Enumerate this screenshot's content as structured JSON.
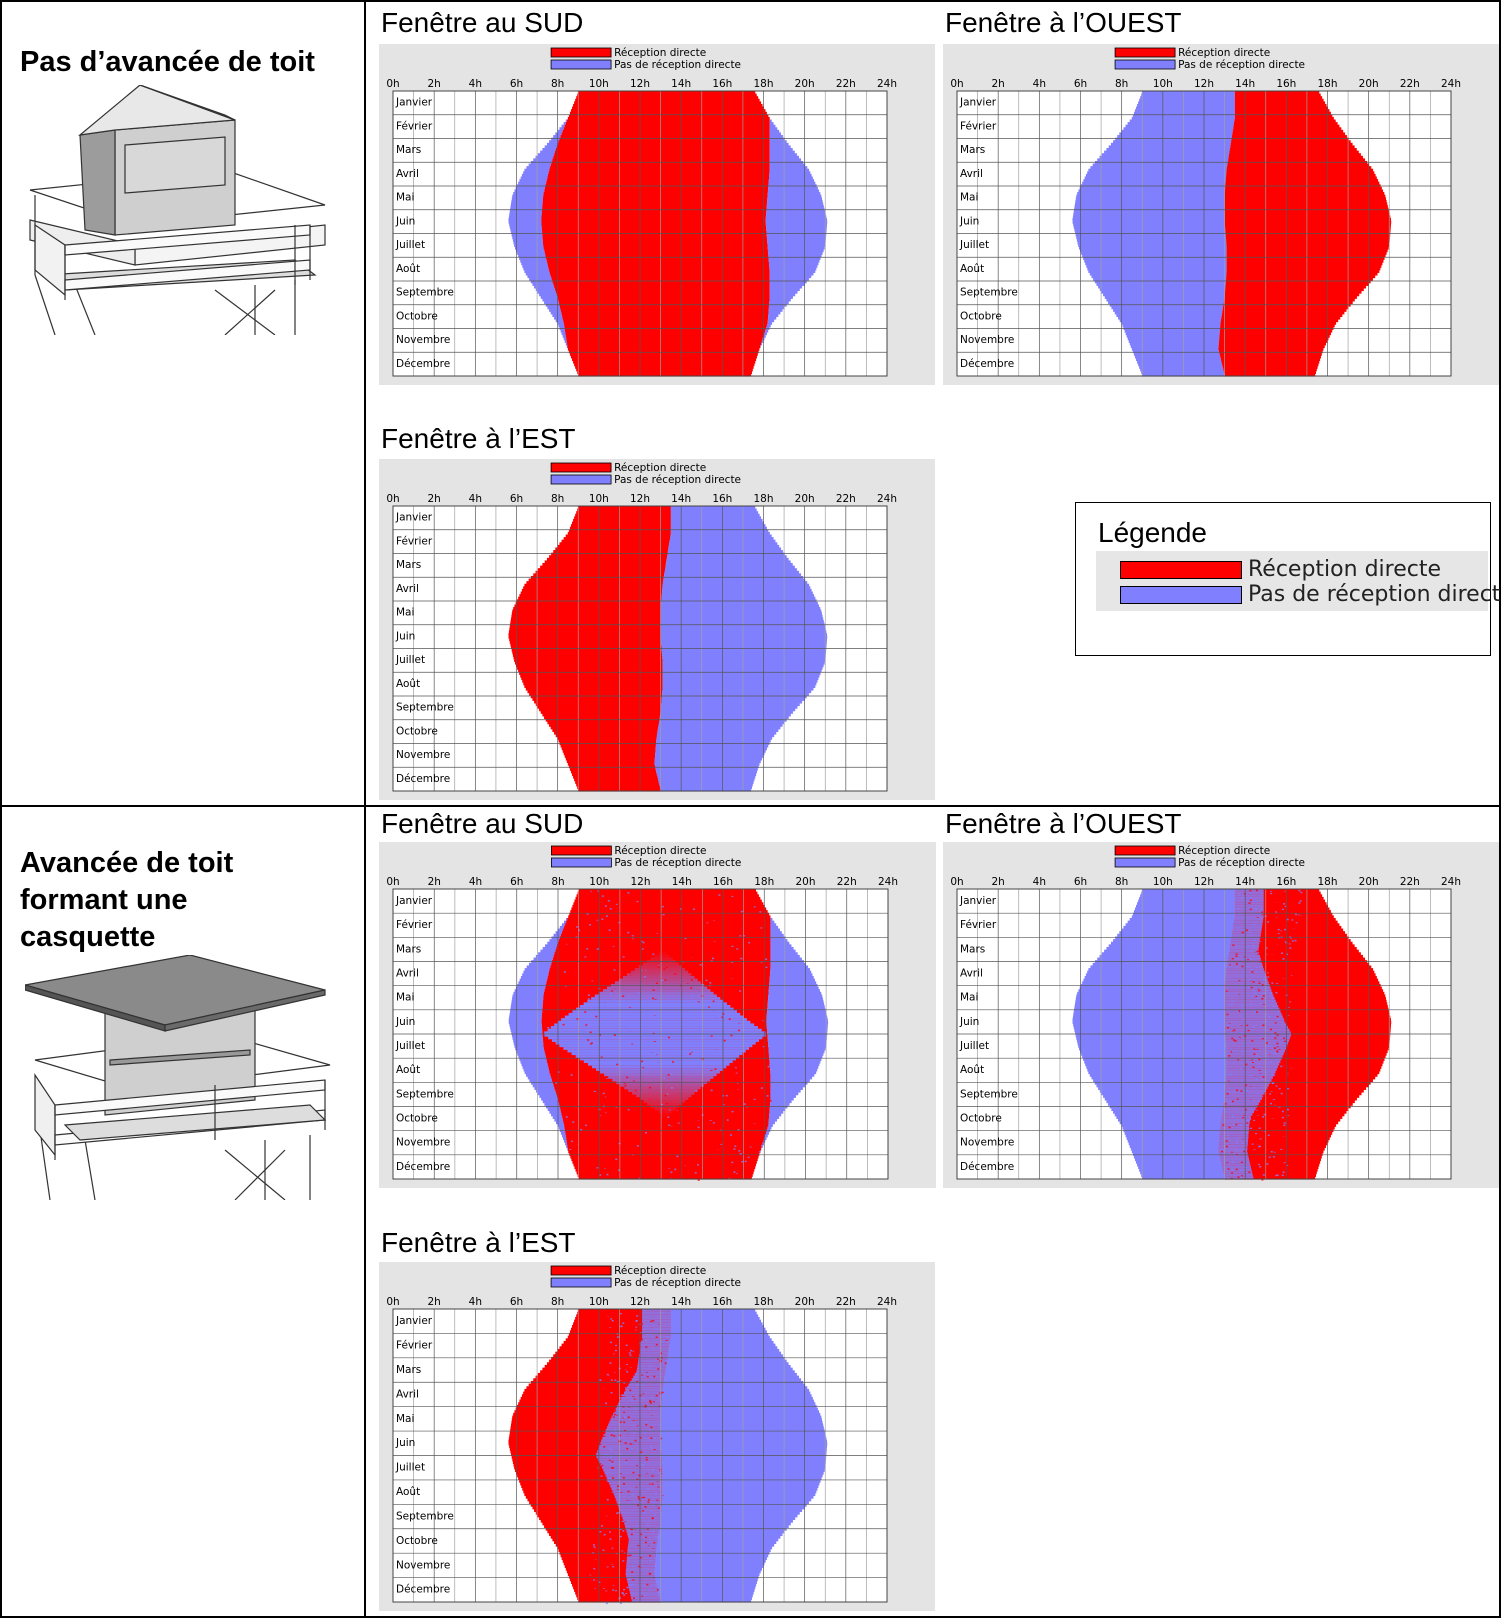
{
  "rows": [
    {
      "title_lines": [
        "Pas d’avancée de toit"
      ]
    },
    {
      "title_lines": [
        "Avancée de toit",
        "formant une",
        "casquette"
      ]
    }
  ],
  "legend": {
    "title": "Légende",
    "items": [
      {
        "label": "Réception directe",
        "color": "#ff0000"
      },
      {
        "label": "Pas de réception directe",
        "color": "#8080ff"
      }
    ]
  },
  "chart_data": [
    {
      "id": "r1-sud",
      "title": "Fenêtre au SUD",
      "type": "heatmap",
      "orientation": "south",
      "shading": "none",
      "daylight_scale": 1.0,
      "legend": [
        "Réception directe",
        "Pas de réception directe"
      ],
      "x_ticks": [
        "0h",
        "2h",
        "4h",
        "6h",
        "8h",
        "10h",
        "12h",
        "14h",
        "16h",
        "18h",
        "20h",
        "22h",
        "24h"
      ],
      "months": [
        "Janvier",
        "Février",
        "Mars",
        "Avril",
        "Mai",
        "Juin",
        "Juillet",
        "Août",
        "Septembre",
        "Octobre",
        "Novembre",
        "Décembre"
      ],
      "xlim": [
        0,
        24
      ]
    },
    {
      "id": "r1-ouest",
      "title": "Fenêtre à l’OUEST",
      "type": "heatmap",
      "orientation": "west",
      "shading": "none",
      "daylight_scale": 1.0,
      "legend": [
        "Réception directe",
        "Pas de réception directe"
      ],
      "x_ticks": [
        "0h",
        "2h",
        "4h",
        "6h",
        "8h",
        "10h",
        "12h",
        "14h",
        "16h",
        "18h",
        "20h",
        "22h",
        "24h"
      ],
      "months": [
        "Janvier",
        "Février",
        "Mars",
        "Avril",
        "Mai",
        "Juin",
        "Juillet",
        "Août",
        "Septembre",
        "Octobre",
        "Novembre",
        "Décembre"
      ],
      "xlim": [
        0,
        24
      ]
    },
    {
      "id": "r1-est",
      "title": "Fenêtre à l’EST",
      "type": "heatmap",
      "orientation": "east",
      "shading": "none",
      "daylight_scale": 1.0,
      "legend": [
        "Réception directe",
        "Pas de réception directe"
      ],
      "x_ticks": [
        "0h",
        "2h",
        "4h",
        "6h",
        "8h",
        "10h",
        "12h",
        "14h",
        "16h",
        "18h",
        "20h",
        "22h",
        "24h"
      ],
      "months": [
        "Janvier",
        "Février",
        "Mars",
        "Avril",
        "Mai",
        "Juin",
        "Juillet",
        "Août",
        "Septembre",
        "Octobre",
        "Novembre",
        "Décembre"
      ],
      "xlim": [
        0,
        24
      ]
    },
    {
      "id": "r2-sud",
      "title": "Fenêtre au SUD",
      "type": "heatmap",
      "orientation": "south",
      "shading": "overhang",
      "daylight_scale": 1.0,
      "legend": [
        "Réception directe",
        "Pas de réception directe"
      ],
      "x_ticks": [
        "0h",
        "2h",
        "4h",
        "6h",
        "8h",
        "10h",
        "12h",
        "14h",
        "16h",
        "18h",
        "20h",
        "22h",
        "24h"
      ],
      "months": [
        "Janvier",
        "Février",
        "Mars",
        "Avril",
        "Mai",
        "Juin",
        "Juillet",
        "Août",
        "Septembre",
        "Octobre",
        "Novembre",
        "Décembre"
      ],
      "xlim": [
        0,
        24
      ]
    },
    {
      "id": "r2-ouest",
      "title": "Fenêtre à l’OUEST",
      "type": "heatmap",
      "orientation": "west",
      "shading": "overhang",
      "daylight_scale": 1.0,
      "legend": [
        "Réception directe",
        "Pas de réception directe"
      ],
      "x_ticks": [
        "0h",
        "2h",
        "4h",
        "6h",
        "8h",
        "10h",
        "12h",
        "14h",
        "16h",
        "18h",
        "20h",
        "22h",
        "24h"
      ],
      "months": [
        "Janvier",
        "Février",
        "Mars",
        "Avril",
        "Mai",
        "Juin",
        "Juillet",
        "Août",
        "Septembre",
        "Octobre",
        "Novembre",
        "Décembre"
      ],
      "xlim": [
        0,
        24
      ]
    },
    {
      "id": "r2-est",
      "title": "Fenêtre à l’EST",
      "type": "heatmap",
      "orientation": "east",
      "shading": "overhang",
      "daylight_scale": 1.0,
      "legend": [
        "Réception directe",
        "Pas de réception directe"
      ],
      "x_ticks": [
        "0h",
        "2h",
        "4h",
        "6h",
        "8h",
        "10h",
        "12h",
        "14h",
        "16h",
        "18h",
        "20h",
        "22h",
        "24h"
      ],
      "months": [
        "Janvier",
        "Février",
        "Mars",
        "Avril",
        "Mai",
        "Juin",
        "Juillet",
        "Août",
        "Septembre",
        "Octobre",
        "Novembre",
        "Décembre"
      ],
      "xlim": [
        0,
        24
      ]
    }
  ],
  "daylight": {
    "months": [
      "Janvier",
      "Février",
      "Mars",
      "Avril",
      "Mai",
      "Juin",
      "Juillet",
      "Août",
      "Septembre",
      "Octobre",
      "Novembre",
      "Décembre"
    ],
    "sunrise": [
      9.0,
      8.5,
      7.5,
      6.4,
      5.8,
      5.6,
      5.9,
      6.4,
      7.2,
      8.0,
      8.5,
      9.0
    ],
    "sunset": [
      17.6,
      18.3,
      19.2,
      20.2,
      20.8,
      21.1,
      21.0,
      20.5,
      19.4,
      18.4,
      17.8,
      17.4
    ],
    "solar_noon": [
      13.5,
      13.5,
      13.3,
      13.1,
      13.0,
      13.0,
      13.1,
      13.1,
      13.0,
      12.8,
      12.7,
      13.0
    ],
    "south_morning_start": [
      9.0,
      8.5,
      8.0,
      7.6,
      7.3,
      7.2,
      7.3,
      7.6,
      8.0,
      8.3,
      8.5,
      9.0
    ],
    "south_evening_end": [
      17.6,
      18.3,
      18.3,
      18.3,
      18.2,
      18.1,
      18.2,
      18.3,
      18.3,
      18.2,
      17.8,
      17.4
    ]
  },
  "colors": {
    "direct": "#ff0000",
    "indirect": "#8080ff",
    "panel": "#e4e4e4",
    "grid": "#555555",
    "gridlight": "#a0a0a0"
  }
}
